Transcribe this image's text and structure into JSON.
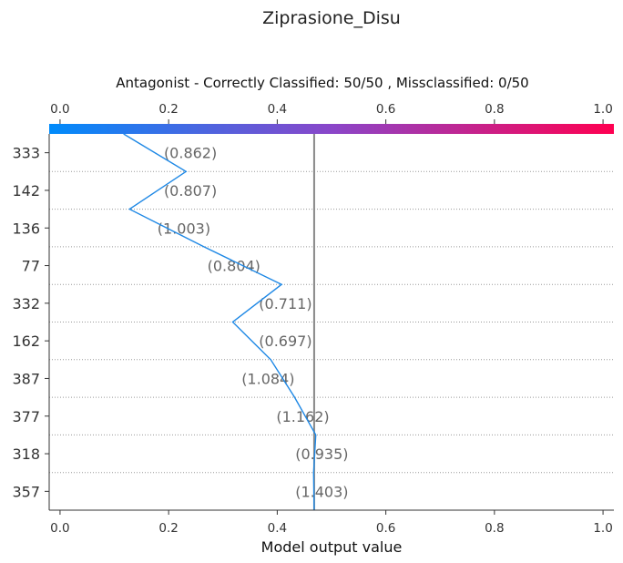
{
  "chart_data": {
    "type": "line",
    "title": "Ziprasione_Disu",
    "subtitle": "Antagonist - Correctly Classified: 50/50 , Missclassified: 0/50",
    "xlabel": "Model output value",
    "ylabel": "",
    "xlim": [
      -0.02,
      1.02
    ],
    "x_ticks": [
      "0.0",
      "0.2",
      "0.4",
      "0.6",
      "0.8",
      "1.0"
    ],
    "x_tick_values": [
      0.0,
      0.2,
      0.4,
      0.6,
      0.8,
      1.0
    ],
    "base_value": 0.468,
    "colorbar": {
      "start": "#008bfb",
      "mid": "#8a46c9",
      "end": "#ff0051"
    },
    "features": [
      {
        "name": "333",
        "value_label": "(0.862)"
      },
      {
        "name": "142",
        "value_label": "(0.807)"
      },
      {
        "name": "136",
        "value_label": "(1.003)"
      },
      {
        "name": "77",
        "value_label": "(0.804)"
      },
      {
        "name": "332",
        "value_label": "(0.711)"
      },
      {
        "name": "162",
        "value_label": "(0.697)"
      },
      {
        "name": "387",
        "value_label": "(1.084)"
      },
      {
        "name": "377",
        "value_label": "(1.162)"
      },
      {
        "name": "318",
        "value_label": "(0.935)"
      },
      {
        "name": "357",
        "value_label": "(1.403)"
      }
    ],
    "path_x": [
      0.117,
      0.232,
      0.128,
      0.265,
      0.408,
      0.318,
      0.388,
      0.432,
      0.471,
      0.467,
      0.468
    ],
    "label_x": [
      0.255,
      0.255,
      0.243,
      0.335,
      0.43,
      0.43,
      0.398,
      0.462,
      0.497,
      0.497
    ],
    "grid": true,
    "line_color": "#1e88e5"
  }
}
